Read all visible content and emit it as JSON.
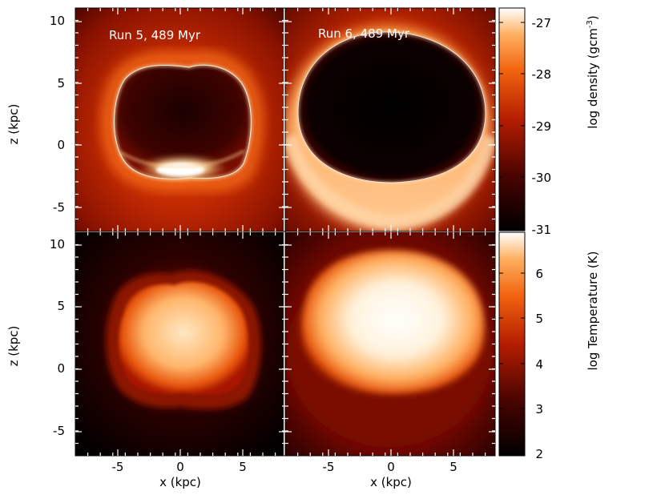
{
  "panels": [
    {
      "id": "density-run5",
      "label": "Run 5, 489 Myr"
    },
    {
      "id": "density-run6",
      "label": "Run 6, 489 Myr"
    },
    {
      "id": "temp-run5",
      "label": ""
    },
    {
      "id": "temp-run6",
      "label": ""
    }
  ],
  "axes": {
    "xlabel": "x (kpc)",
    "ylabel": "z (kpc)",
    "x_ticks": [
      "-5",
      "0",
      "5"
    ],
    "y_ticks": [
      "10",
      "5",
      "0",
      "-5"
    ]
  },
  "colorbars": {
    "density": {
      "label": "log density (gcm",
      "label_sup": "-3",
      "label_close": ")",
      "ticks": [
        "-27",
        "-28",
        "-29",
        "-30",
        "-31"
      ]
    },
    "temperature": {
      "label": "log Temperature (K)",
      "ticks": [
        "6",
        "5",
        "4",
        "3",
        "2"
      ]
    }
  },
  "colors": {
    "map_low": "#000000",
    "map_mid": "#a81800",
    "map_high": "#ff8a1e",
    "map_top": "#ffffff"
  }
}
